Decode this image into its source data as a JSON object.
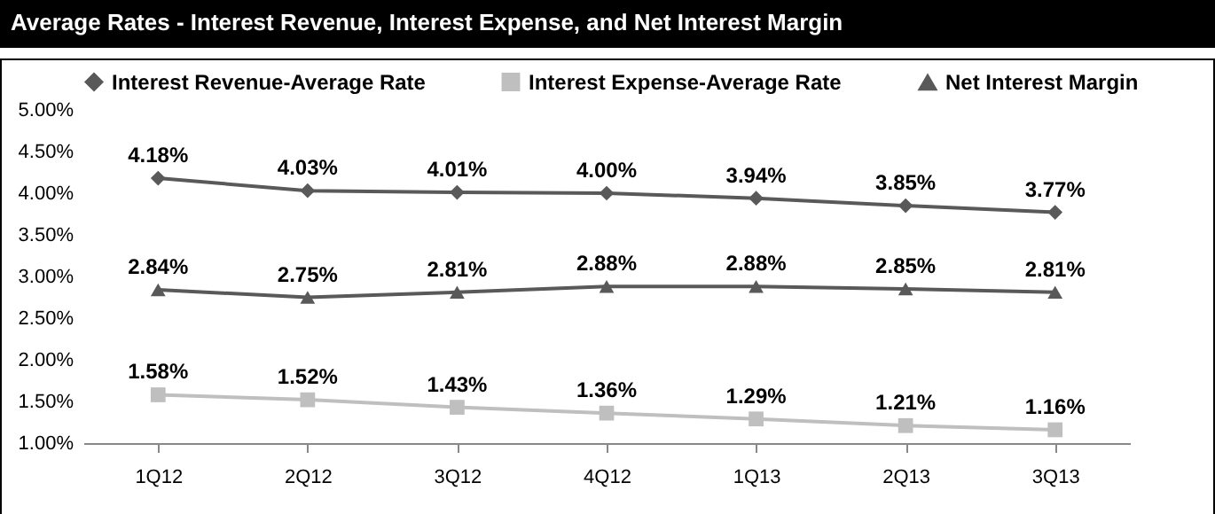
{
  "chart_data": {
    "type": "line",
    "title": "Average Rates - Interest Revenue, Interest Expense, and Net Interest Margin",
    "categories": [
      "1Q12",
      "2Q12",
      "3Q12",
      "4Q12",
      "1Q13",
      "2Q13",
      "3Q13"
    ],
    "series": [
      {
        "name": "Interest Revenue-Average Rate",
        "color": "#595959",
        "marker": "diamond",
        "values": [
          4.18,
          4.03,
          4.01,
          4.0,
          3.94,
          3.85,
          3.77
        ],
        "value_labels": [
          "4.18%",
          "4.03%",
          "4.01%",
          "4.00%",
          "3.94%",
          "3.85%",
          "3.77%"
        ]
      },
      {
        "name": "Interest Expense-Average Rate",
        "color": "#bfbfbf",
        "marker": "square",
        "values": [
          1.58,
          1.52,
          1.43,
          1.36,
          1.29,
          1.21,
          1.16
        ],
        "value_labels": [
          "1.58%",
          "1.52%",
          "1.43%",
          "1.36%",
          "1.29%",
          "1.21%",
          "1.16%"
        ]
      },
      {
        "name": "Net Interest Margin",
        "color": "#595959",
        "marker": "triangle",
        "values": [
          2.84,
          2.75,
          2.81,
          2.88,
          2.88,
          2.85,
          2.81
        ],
        "value_labels": [
          "2.84%",
          "2.75%",
          "2.81%",
          "2.88%",
          "2.88%",
          "2.85%",
          "2.81%"
        ]
      }
    ],
    "ylim": [
      1,
      5
    ],
    "yticks": [
      {
        "value": 1,
        "label": "1.00%"
      },
      {
        "value": 1.5,
        "label": "1.50%"
      },
      {
        "value": 2,
        "label": "2.00%"
      },
      {
        "value": 2.5,
        "label": "2.50%"
      },
      {
        "value": 3,
        "label": "3.00%"
      },
      {
        "value": 3.5,
        "label": "3.50%"
      },
      {
        "value": 4,
        "label": "4.00%"
      },
      {
        "value": 4.5,
        "label": "4.50%"
      },
      {
        "value": 5,
        "label": "5.00%"
      }
    ],
    "grid": false,
    "legend": "top",
    "line_style": "solid"
  }
}
